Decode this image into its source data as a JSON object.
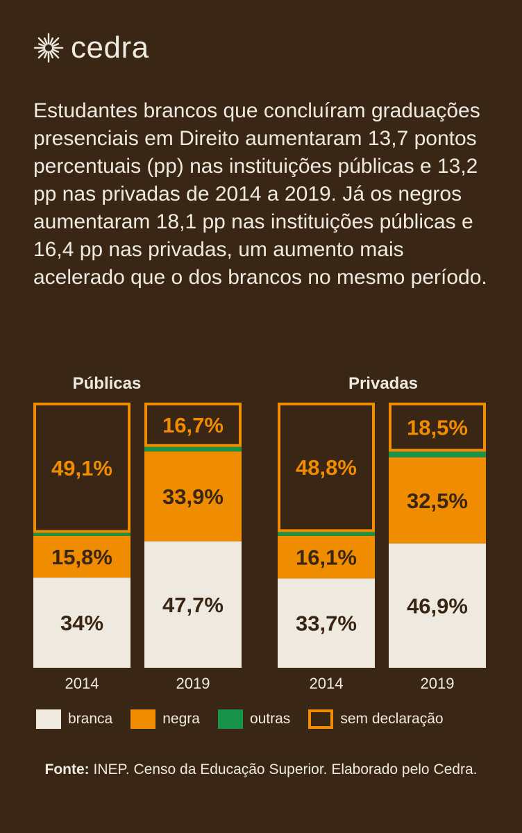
{
  "brand": {
    "name": "cedra",
    "logo_icon": "sun-burst-icon"
  },
  "intro_text": "Estudantes brancos que concluíram graduações presenciais em Direito aumentaram 13,7 pontos percentuais (pp) nas instituições públicas e 13,2 pp nas privadas de 2014 a 2019. Já os negros aumentaram 18,1 pp nas instituições públicas e 16,4 pp nas privadas, um aumento mais acelerado que o dos brancos no mesmo período.",
  "colors": {
    "background": "#3a2614",
    "branca": "#efeae0",
    "negra": "#f08c00",
    "outras": "#17944a",
    "sem_declaracao": "#f08c00",
    "dark_text": "#3a2614"
  },
  "chart_data": [
    {
      "type": "bar",
      "stacked": true,
      "title": "Públicas",
      "categories": [
        "2014",
        "2019"
      ],
      "ylim": [
        0,
        100
      ],
      "series": [
        {
          "name": "branca",
          "values": [
            34,
            47.7
          ],
          "labels": [
            "34%",
            "47,7%"
          ]
        },
        {
          "name": "negra",
          "values": [
            15.8,
            33.9
          ],
          "labels": [
            "15,8%",
            "33,9%"
          ]
        },
        {
          "name": "outras",
          "values": [
            1.1,
            1.7
          ],
          "labels": [
            "",
            ""
          ]
        },
        {
          "name": "sem declaração",
          "values": [
            49.1,
            16.7
          ],
          "labels": [
            "49,1%",
            "16,7%"
          ]
        }
      ]
    },
    {
      "type": "bar",
      "stacked": true,
      "title": "Privadas",
      "categories": [
        "2014",
        "2019"
      ],
      "ylim": [
        0,
        100
      ],
      "series": [
        {
          "name": "branca",
          "values": [
            33.7,
            46.9
          ],
          "labels": [
            "33,7%",
            "46,9%"
          ]
        },
        {
          "name": "negra",
          "values": [
            16.1,
            32.5
          ],
          "labels": [
            "16,1%",
            "32,5%"
          ]
        },
        {
          "name": "outras",
          "values": [
            1.4,
            2.1
          ],
          "labels": [
            "",
            ""
          ]
        },
        {
          "name": "sem declaração",
          "values": [
            48.8,
            18.5
          ],
          "labels": [
            "48,8%",
            "18,5%"
          ]
        }
      ]
    }
  ],
  "legend": [
    {
      "label": "branca",
      "style": "fill",
      "color": "#efeae0"
    },
    {
      "label": "negra",
      "style": "fill",
      "color": "#f08c00"
    },
    {
      "label": "outras",
      "style": "fill",
      "color": "#17944a"
    },
    {
      "label": "sem declaração",
      "style": "outline",
      "color": "#f08c00"
    }
  ],
  "source": {
    "label": "Fonte:",
    "text": " INEP. Censo da Educação Superior. Elaborado pelo Cedra."
  }
}
